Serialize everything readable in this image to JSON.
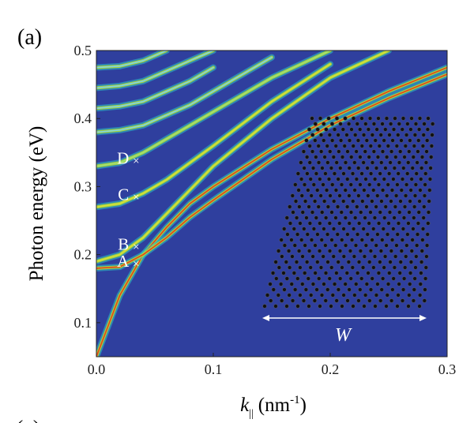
{
  "chart_data": {
    "type": "line",
    "panel_label": "(a)",
    "next_panel_label": "(c)",
    "ylabel": "Photon energy (eV)",
    "xlabel": {
      "symbol": "k",
      "subscript": "||",
      "unit": "(nm",
      "exponent": "-1",
      "close": ")"
    },
    "background": "#2f3f9e",
    "xlim": [
      0,
      0.3
    ],
    "ylim": [
      0.05,
      0.5
    ],
    "xticks": [
      {
        "value": 0,
        "label": "0.0"
      },
      0.1,
      0.2,
      0.3
    ],
    "yticks": [
      0.1,
      0.2,
      0.3,
      0.4,
      0.5
    ],
    "x": [
      0,
      0.02,
      0.04,
      0.06,
      0.08,
      0.1,
      0.15,
      0.2,
      0.25,
      0.3
    ],
    "series": [
      {
        "color": "#e8401c",
        "values": [
          0.05,
          0.14,
          0.2,
          0.24,
          0.275,
          0.3,
          0.355,
          0.4,
          0.44,
          0.475
        ]
      },
      {
        "color": "#e8401c",
        "values": [
          0.18,
          0.182,
          0.2,
          0.225,
          0.255,
          0.28,
          0.34,
          0.39,
          0.43,
          0.465
        ]
      },
      {
        "color": "#d8e03a",
        "values": [
          0.19,
          0.2,
          0.225,
          0.26,
          0.295,
          0.33,
          0.4,
          0.46,
          0.5,
          null
        ]
      },
      {
        "color": "#d8e03a",
        "values": [
          0.27,
          0.275,
          0.29,
          0.31,
          0.335,
          0.36,
          0.425,
          0.48,
          null,
          null
        ]
      },
      {
        "color": "#9fe07a",
        "values": [
          0.33,
          0.335,
          0.35,
          0.37,
          0.39,
          0.41,
          0.46,
          0.5,
          null,
          null
        ]
      },
      {
        "color": "#7fd3e6",
        "values": [
          0.38,
          0.383,
          0.39,
          0.405,
          0.42,
          0.44,
          0.49,
          null,
          null,
          null
        ]
      },
      {
        "color": "#7fd3e6",
        "values": [
          0.415,
          0.418,
          0.425,
          0.44,
          0.455,
          0.475,
          null,
          null,
          null,
          null
        ]
      },
      {
        "color": "#7fd3e6",
        "values": [
          0.445,
          0.448,
          0.455,
          0.47,
          0.485,
          0.5,
          null,
          null,
          null,
          null
        ]
      },
      {
        "color": "#7fd3e6",
        "values": [
          0.475,
          0.477,
          0.485,
          0.5,
          null,
          null,
          null,
          null,
          null,
          null
        ]
      }
    ],
    "annotations": [
      {
        "text": "A",
        "x": 0.034,
        "y": 0.187
      },
      {
        "text": "B",
        "x": 0.034,
        "y": 0.212
      },
      {
        "text": "C",
        "x": 0.034,
        "y": 0.285
      },
      {
        "text": "D",
        "x": 0.034,
        "y": 0.338
      }
    ],
    "marker": "×",
    "inset_label": "W"
  }
}
